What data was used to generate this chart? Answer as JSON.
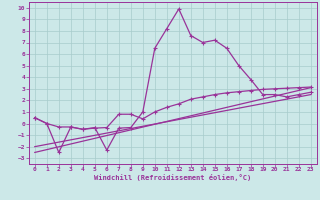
{
  "xlabel": "Windchill (Refroidissement éolien,°C)",
  "bg_color": "#cce8e8",
  "grid_color": "#a8cccc",
  "line_color": "#993399",
  "xlim": [
    -0.5,
    23.5
  ],
  "ylim": [
    -3.5,
    10.5
  ],
  "xticks": [
    0,
    1,
    2,
    3,
    4,
    5,
    6,
    7,
    8,
    9,
    10,
    11,
    12,
    13,
    14,
    15,
    16,
    17,
    18,
    19,
    20,
    21,
    22,
    23
  ],
  "yticks": [
    -3,
    -2,
    -1,
    0,
    1,
    2,
    3,
    4,
    5,
    6,
    7,
    8,
    9,
    10
  ],
  "line1_x": [
    0,
    1,
    2,
    3,
    4,
    5,
    6,
    7,
    8,
    9,
    10,
    11,
    12,
    13,
    14,
    15,
    16,
    17,
    18,
    19,
    20,
    21,
    22,
    23
  ],
  "line1_y": [
    0.5,
    0.0,
    -2.5,
    -0.3,
    -0.5,
    -0.35,
    -2.3,
    -0.4,
    -0.35,
    1.0,
    6.5,
    8.2,
    9.9,
    7.6,
    7.0,
    7.2,
    6.5,
    5.0,
    3.8,
    2.5,
    2.5,
    2.3,
    2.5,
    2.7
  ],
  "line2_x": [
    0,
    1,
    2,
    3,
    4,
    5,
    6,
    7,
    8,
    9,
    10,
    11,
    12,
    13,
    14,
    15,
    16,
    17,
    18,
    19,
    20,
    21,
    22,
    23
  ],
  "line2_y": [
    0.5,
    0.0,
    -0.3,
    -0.3,
    -0.5,
    -0.4,
    -0.35,
    0.8,
    0.8,
    0.4,
    1.0,
    1.4,
    1.7,
    2.1,
    2.3,
    2.5,
    2.65,
    2.75,
    2.85,
    2.95,
    3.0,
    3.05,
    3.1,
    3.15
  ],
  "line3_x": [
    0,
    23
  ],
  "line3_y": [
    -2.5,
    3.1
  ],
  "line4_x": [
    0,
    23
  ],
  "line4_y": [
    -2.0,
    2.5
  ]
}
